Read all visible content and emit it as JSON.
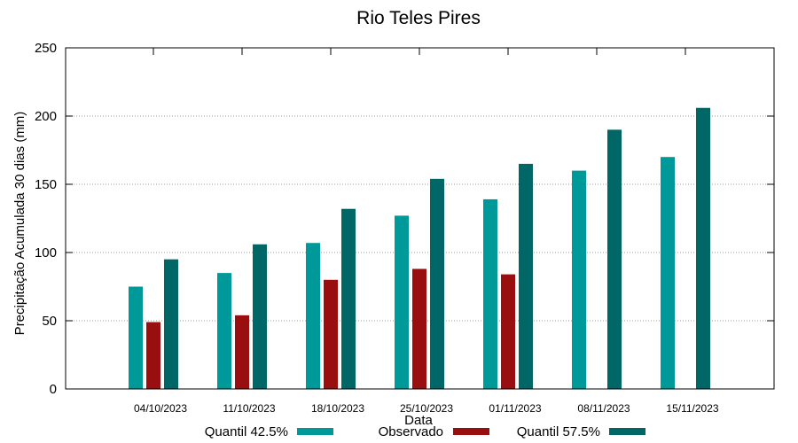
{
  "chart_data": {
    "type": "bar",
    "title": "Rio Teles Pires",
    "xlabel": "Data",
    "ylabel": "Precipitação Acumulada 30 dias (mm)",
    "ylim": [
      0,
      250
    ],
    "yticks": [
      0,
      50,
      100,
      150,
      200,
      250
    ],
    "grid": true,
    "legend_position": "bottom",
    "categories": [
      "04/10/2023",
      "11/10/2023",
      "18/10/2023",
      "25/10/2023",
      "01/11/2023",
      "08/11/2023",
      "15/11/2023"
    ],
    "series": [
      {
        "name": "Quantil 42.5%",
        "color": "#009999",
        "values": [
          75,
          85,
          107,
          127,
          139,
          160,
          170
        ]
      },
      {
        "name": "Observado",
        "color": "#990f0f",
        "values": [
          49,
          54,
          80,
          88,
          84,
          null,
          null
        ]
      },
      {
        "name": "Quantil 57.5%",
        "color": "#006666",
        "values": [
          95,
          106,
          132,
          154,
          165,
          190,
          206
        ]
      }
    ]
  }
}
